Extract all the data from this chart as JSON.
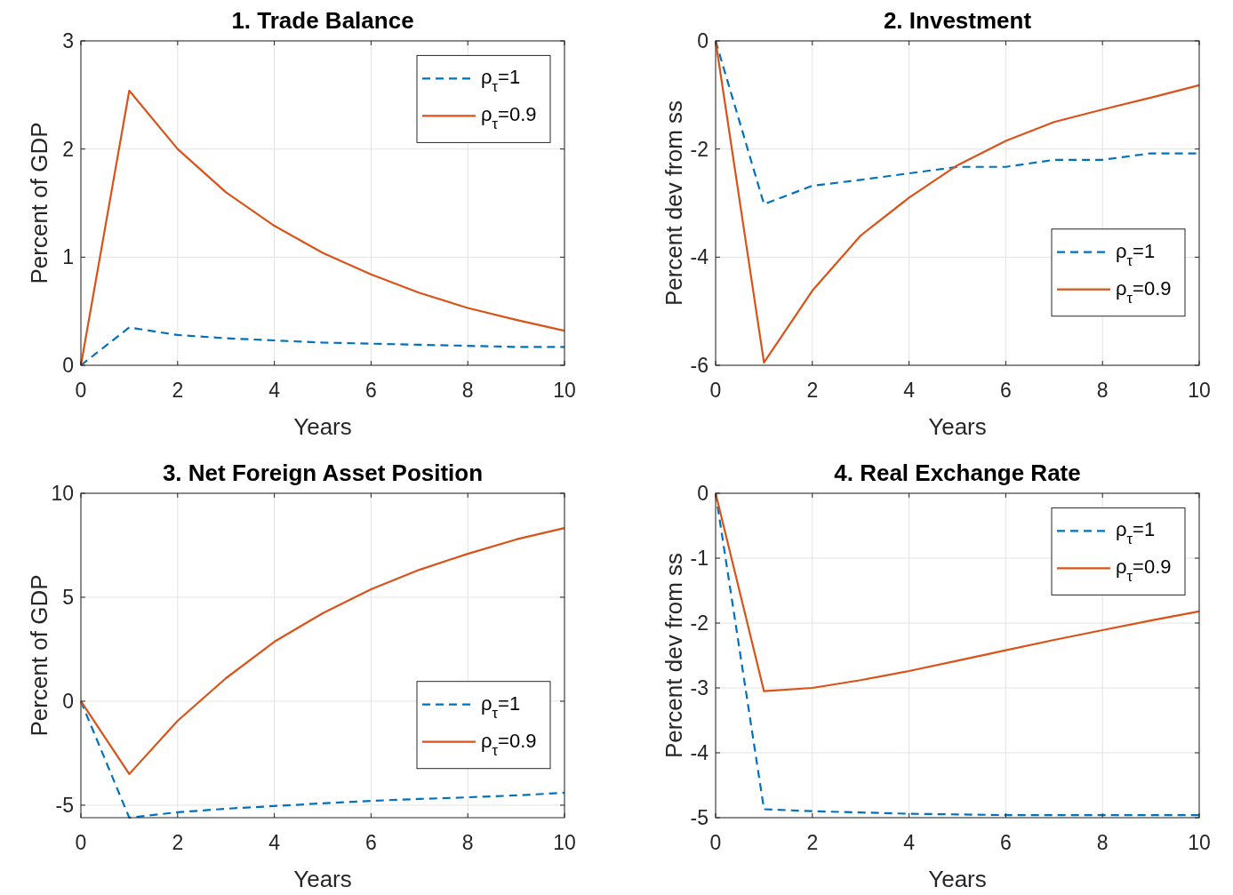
{
  "chart_data": [
    {
      "type": "line",
      "title": "1. Trade Balance",
      "xlabel": "Years",
      "ylabel": "Percent of GDP",
      "x": [
        0,
        1,
        2,
        3,
        4,
        5,
        6,
        7,
        8,
        9,
        10
      ],
      "xlim": [
        0,
        10
      ],
      "xticks": [
        0,
        2,
        4,
        6,
        8,
        10
      ],
      "ylim": [
        0,
        3
      ],
      "yticks": [
        0,
        1,
        2,
        3
      ],
      "grid": true,
      "legend": "top right",
      "series": [
        {
          "name": "ρ$_{τ}$=1",
          "color": "#0072bd",
          "line_style": "dashed",
          "values": [
            0,
            0.35,
            0.28,
            0.25,
            0.23,
            0.21,
            0.2,
            0.19,
            0.18,
            0.17,
            0.17
          ]
        },
        {
          "name": "ρ$_{τ}$=0.9",
          "color": "#d95319",
          "line_style": "solid",
          "values": [
            0,
            2.54,
            2.0,
            1.6,
            1.29,
            1.04,
            0.84,
            0.67,
            0.53,
            0.42,
            0.32
          ]
        }
      ]
    },
    {
      "type": "line",
      "title": "2. Investment",
      "xlabel": "Years",
      "ylabel": "Percent dev from ss",
      "x": [
        0,
        1,
        2,
        3,
        4,
        5,
        6,
        7,
        8,
        9,
        10
      ],
      "xlim": [
        0,
        10
      ],
      "xticks": [
        0,
        2,
        4,
        6,
        8,
        10
      ],
      "ylim": [
        -6,
        0
      ],
      "yticks": [
        -6,
        -4,
        -2,
        0
      ],
      "grid": true,
      "legend": "right",
      "series": [
        {
          "name": "ρ$_{τ}$=1",
          "color": "#0072bd",
          "line_style": "dashed",
          "values": [
            0,
            -3.02,
            -2.68,
            -2.57,
            -2.45,
            -2.33,
            -2.33,
            -2.2,
            -2.2,
            -2.08,
            -2.08
          ]
        },
        {
          "name": "ρ$_{τ}$=0.9",
          "color": "#d95319",
          "line_style": "solid",
          "values": [
            0,
            -5.95,
            -4.62,
            -3.6,
            -2.9,
            -2.3,
            -1.85,
            -1.5,
            -1.27,
            -1.05,
            -0.82
          ]
        }
      ]
    },
    {
      "type": "line",
      "title": "3. Net Foreign Asset Position",
      "xlabel": "Years",
      "ylabel": "Percent of GDP",
      "x": [
        0,
        1,
        2,
        3,
        4,
        5,
        6,
        7,
        8,
        9,
        10
      ],
      "xlim": [
        0,
        10
      ],
      "xticks": [
        0,
        2,
        4,
        6,
        8,
        10
      ],
      "ylim": [
        -5.6,
        10
      ],
      "yticks": [
        -5,
        0,
        5,
        10
      ],
      "grid": true,
      "legend": "right",
      "series": [
        {
          "name": "ρ$_{τ}$=1",
          "color": "#0072bd",
          "line_style": "dashed",
          "values": [
            0,
            -5.6,
            -5.34,
            -5.17,
            -5.04,
            -4.91,
            -4.79,
            -4.7,
            -4.62,
            -4.53,
            -4.4
          ]
        },
        {
          "name": "ρ$_{τ}$=0.9",
          "color": "#d95319",
          "line_style": "solid",
          "values": [
            0,
            -3.5,
            -0.94,
            1.11,
            2.86,
            4.23,
            5.38,
            6.32,
            7.09,
            7.78,
            8.33
          ]
        }
      ]
    },
    {
      "type": "line",
      "title": "4. Real Exchange Rate",
      "xlabel": "Years",
      "ylabel": "Percent dev from ss",
      "x": [
        0,
        1,
        2,
        3,
        4,
        5,
        6,
        7,
        8,
        9,
        10
      ],
      "xlim": [
        0,
        10
      ],
      "xticks": [
        0,
        2,
        4,
        6,
        8,
        10
      ],
      "ylim": [
        -5,
        0
      ],
      "yticks": [
        -5,
        -4,
        -3,
        -2,
        -1,
        0
      ],
      "grid": true,
      "legend": "top right",
      "series": [
        {
          "name": "ρ$_{τ}$=1",
          "color": "#0072bd",
          "line_style": "dashed",
          "values": [
            0,
            -4.87,
            -4.9,
            -4.92,
            -4.94,
            -4.95,
            -4.96,
            -4.96,
            -4.96,
            -4.96,
            -4.96
          ]
        },
        {
          "name": "ρ$_{τ}$=0.9",
          "color": "#d95319",
          "line_style": "solid",
          "values": [
            0,
            -3.05,
            -3.0,
            -2.88,
            -2.74,
            -2.58,
            -2.42,
            -2.26,
            -2.11,
            -1.96,
            -1.82
          ]
        }
      ]
    }
  ]
}
